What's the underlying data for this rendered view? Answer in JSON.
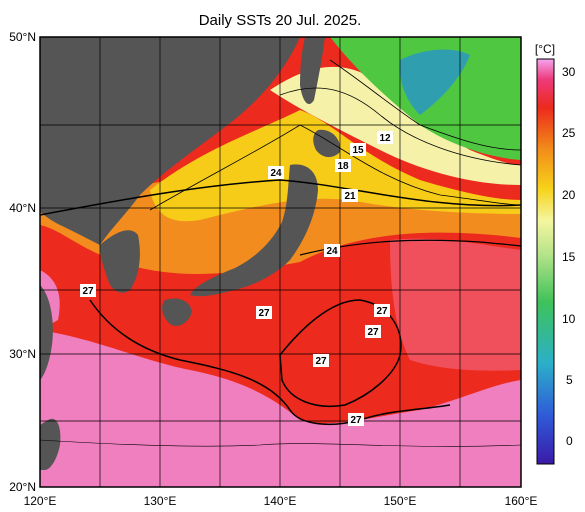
{
  "title": "Daily SSTs 20 Jul. 2025.",
  "lat_labels": [
    "50°N",
    "40°N",
    "30°N",
    "20°N"
  ],
  "lon_labels": [
    "120°E",
    "130°E",
    "140°E",
    "150°E",
    "160°E"
  ],
  "colorbar": {
    "unit": "[°C]",
    "ticks": [
      "30",
      "25",
      "20",
      "15",
      "10",
      "5",
      "0"
    ]
  },
  "contour_labels": [
    "12",
    "15",
    "18",
    "21",
    "24",
    "24",
    "27",
    "27",
    "27",
    "27",
    "27",
    "27"
  ],
  "colors": {
    "land": "#555555",
    "warm": "#ee1f1f",
    "hot": "#f08fd0",
    "mid": "#f7c21a",
    "cool": "#5ccf43"
  }
}
